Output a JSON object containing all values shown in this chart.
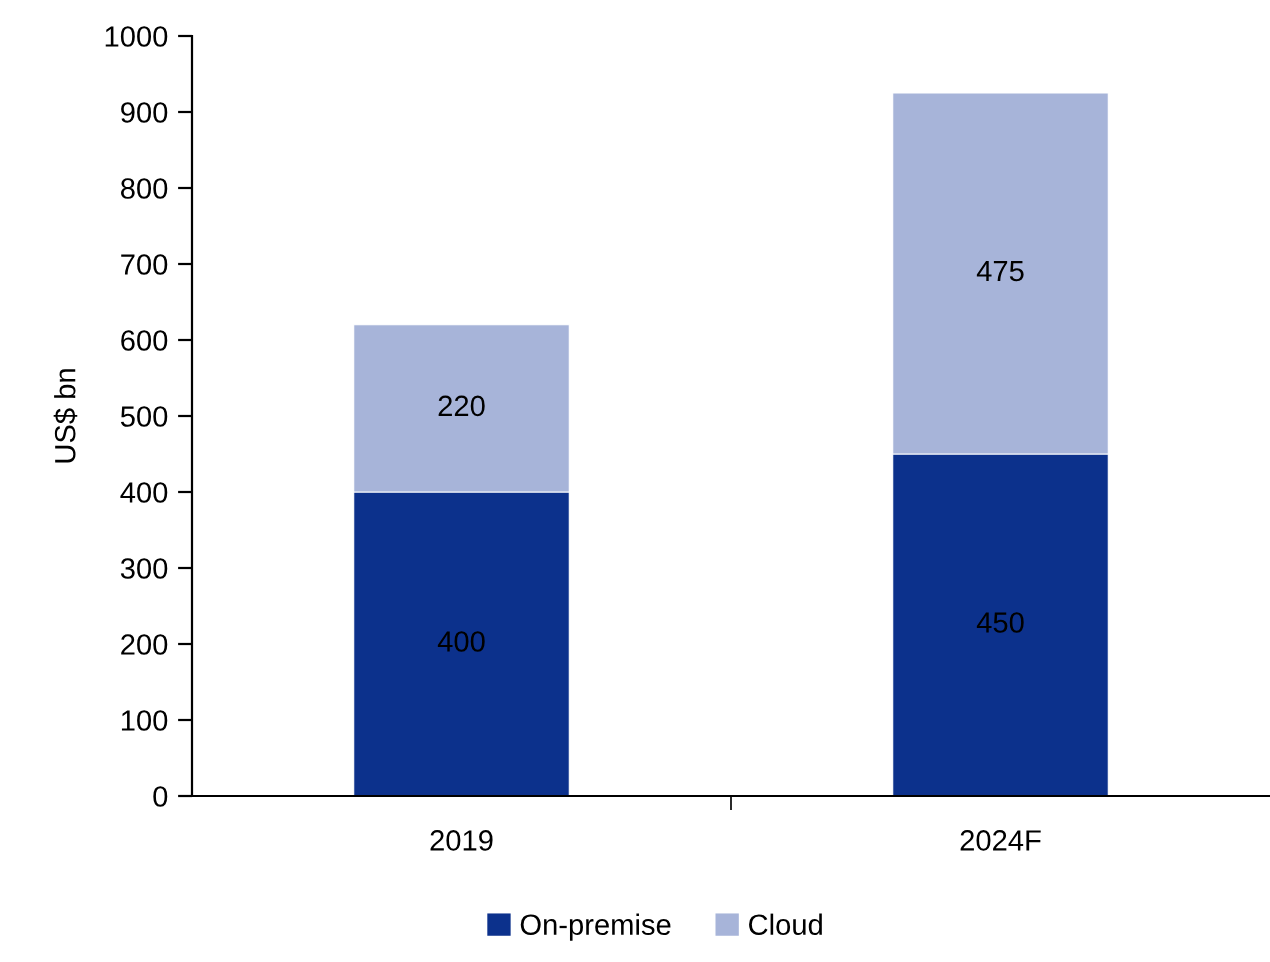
{
  "chart_data": {
    "type": "bar",
    "stacked": true,
    "ylabel": "US$ bn",
    "categories": [
      "2019",
      "2024F"
    ],
    "series": [
      {
        "name": "On-premise",
        "color": "#0c318c",
        "values": [
          400,
          450
        ]
      },
      {
        "name": "Cloud",
        "color": "#a7b4d9",
        "values": [
          220,
          475
        ]
      }
    ],
    "ylim": [
      0,
      1000
    ],
    "yticks": [
      0,
      100,
      200,
      300,
      400,
      500,
      600,
      700,
      800,
      900,
      1000
    ],
    "data_labels": true,
    "grid": false,
    "legend": "bottom"
  }
}
